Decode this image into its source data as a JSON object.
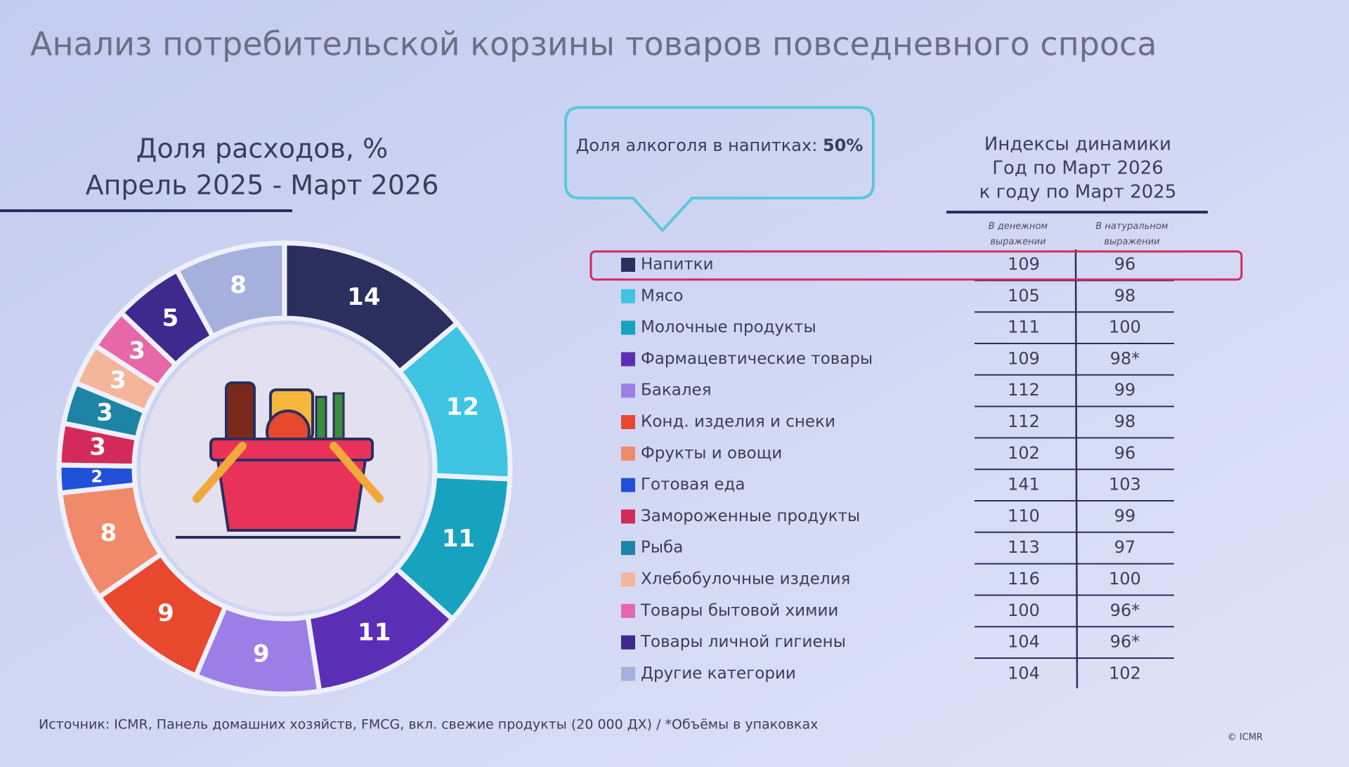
{
  "title": "Анализ потребительской корзины товаров повседневного спроса",
  "chart_data": {
    "type": "donut",
    "title": "Доля расходов, %",
    "subtitle": "Апрель 2025 - Март 2026",
    "categories": [
      "Напитки",
      "Мясо",
      "Молочные продукты",
      "Фармацевтические товары",
      "Бакалея",
      "Конд. изделия и снеки",
      "Фрукты и овощи",
      "Готовая еда",
      "Замороженные продукты",
      "Рыба",
      "Хлебобулочные изделия",
      "Товары бытовой химии",
      "Товары личной гигиены",
      "Другие категории"
    ],
    "values": [
      14,
      12,
      11,
      11,
      9,
      9,
      8,
      2,
      3,
      3,
      3,
      3,
      5,
      8
    ],
    "colors": [
      "#2b2f5e",
      "#3fc4e4",
      "#17a3bf",
      "#5b2fb5",
      "#9b7fe6",
      "#e8482d",
      "#f08a6a",
      "#2150d8",
      "#d42a5a",
      "#1d84a5",
      "#f4b69a",
      "#e668a8",
      "#3d2a8c",
      "#a5b0dc"
    ]
  },
  "callout": {
    "text": "Доля алкоголя в напитках:",
    "value": "50%"
  },
  "table": {
    "title": [
      "Индексы динамики",
      "Год по Март 2026",
      "к году по Март 2025"
    ],
    "columns": [
      "В денежном выражении",
      "В натуральном выражении"
    ],
    "rows": [
      [
        109,
        96
      ],
      [
        105,
        98
      ],
      [
        111,
        100
      ],
      [
        109,
        "98*"
      ],
      [
        112,
        99
      ],
      [
        112,
        98
      ],
      [
        102,
        96
      ],
      [
        141,
        103
      ],
      [
        110,
        99
      ],
      [
        113,
        97
      ],
      [
        116,
        100
      ],
      [
        100,
        "96*"
      ],
      [
        104,
        "96*"
      ],
      [
        104,
        102
      ]
    ]
  },
  "footer": {
    "source": "Источник: ICMR, Панель домашних хозяйств, FMCG, вкл. свежие продукты (20 000 ДХ)  / *Объёмы в упаковках",
    "copyright": "© ICMR"
  }
}
